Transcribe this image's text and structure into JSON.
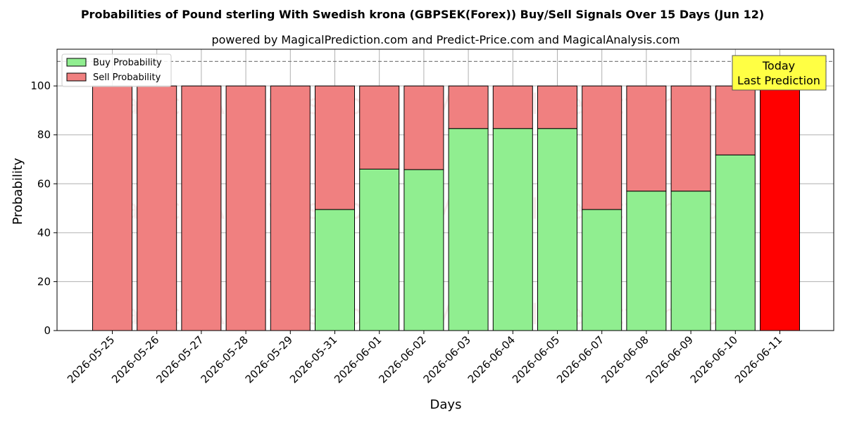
{
  "chart_data": {
    "type": "bar",
    "stacked": true,
    "title": "Probabilities of Pound sterling With Swedish krona (GBPSEK(Forex)) Buy/Sell Signals Over 15 Days (Jun 12)",
    "subtitle": "powered by MagicalPrediction.com and Predict-Price.com and MagicalAnalysis.com",
    "xlabel": "Days",
    "ylabel": "Probability",
    "ylim": [
      0,
      115
    ],
    "yticks": [
      0,
      20,
      40,
      60,
      80,
      100
    ],
    "grid": true,
    "reference_line": 110,
    "legend_placement": "top-left",
    "categories": [
      "2026-05-25",
      "2026-05-26",
      "2026-05-27",
      "2026-05-28",
      "2026-05-29",
      "2026-05-31",
      "2026-06-01",
      "2026-06-02",
      "2026-06-03",
      "2026-06-04",
      "2026-06-05",
      "2026-06-07",
      "2026-06-08",
      "2026-06-09",
      "2026-06-10",
      "2026-06-11"
    ],
    "series": [
      {
        "name": "Buy Probability",
        "color": "#90ee90",
        "values": [
          0,
          0,
          0,
          0,
          0,
          49.5,
          66,
          65.8,
          82.6,
          82.6,
          82.6,
          49.5,
          57,
          57,
          71.8,
          0
        ]
      },
      {
        "name": "Sell Probability",
        "color": "#f08080",
        "values": [
          100,
          100,
          100,
          100,
          100,
          50.5,
          34,
          34.2,
          17.4,
          17.4,
          17.4,
          50.5,
          43,
          43,
          28.2,
          100
        ]
      }
    ],
    "highlight": {
      "index": 15,
      "color": "#ff0000"
    },
    "annotation": {
      "line1": "Today",
      "line2": "Last Prediction",
      "color": "#ffff44"
    },
    "watermarks": [
      "MagicalAnalysis.com",
      "MagicalPrediction.com"
    ]
  }
}
